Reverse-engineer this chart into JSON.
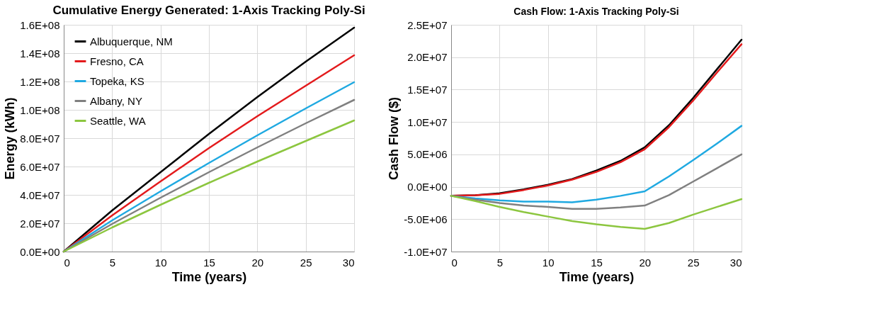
{
  "chart_data": [
    {
      "type": "line",
      "title": "Cumulative Energy Generated: 1-Axis Tracking Poly-Si",
      "xlabel": "Time (years)",
      "ylabel": "Energy (kWh)",
      "x": [
        0,
        5,
        10,
        15,
        20,
        25,
        30
      ],
      "xlim": [
        0,
        30
      ],
      "xticks": [
        0,
        5,
        10,
        15,
        20,
        25,
        30
      ],
      "ylim": [
        0,
        160000000
      ],
      "yticks": [
        {
          "value": 0,
          "label": "0.0E+00"
        },
        {
          "value": 20000000,
          "label": "2.0E+07"
        },
        {
          "value": 40000000,
          "label": "4.0E+07"
        },
        {
          "value": 60000000,
          "label": "6.0E+07"
        },
        {
          "value": 80000000,
          "label": "8.0E+07"
        },
        {
          "value": 100000000,
          "label": "1.0E+08"
        },
        {
          "value": 120000000,
          "label": "1.2E+08"
        },
        {
          "value": 140000000,
          "label": "1.4E+08"
        },
        {
          "value": 160000000,
          "label": "1.6E+08"
        }
      ],
      "grid": true,
      "legend": "top left",
      "marker": "none",
      "line_style": "solid",
      "series": [
        {
          "name": "Albuquerque, NM",
          "color": "#000000",
          "values": [
            0,
            29000000,
            56000000,
            83000000,
            109000000,
            134000000,
            158000000
          ]
        },
        {
          "name": "Fresno, CA",
          "color": "#e31a1c",
          "values": [
            0,
            25500000,
            49500000,
            73000000,
            95500000,
            117000000,
            138500000
          ]
        },
        {
          "name": "Topeka, KS",
          "color": "#1fa9e1",
          "values": [
            0,
            22000000,
            42500000,
            62500000,
            82000000,
            101000000,
            119500000
          ]
        },
        {
          "name": "Albany, NY",
          "color": "#808080",
          "values": [
            0,
            19500000,
            38000000,
            56000000,
            73500000,
            90500000,
            107000000
          ]
        },
        {
          "name": "Seattle, WA",
          "color": "#8cc63f",
          "values": [
            0,
            17000000,
            33000000,
            48500000,
            63500000,
            78000000,
            92500000
          ]
        }
      ]
    },
    {
      "type": "line",
      "title": "Cash Flow: 1-Axis Tracking Poly-Si",
      "xlabel": "Time (years)",
      "ylabel": "Cash Flow ($)",
      "x": [
        0,
        2.5,
        5,
        7.5,
        10,
        12.5,
        15,
        17.5,
        20,
        22.5,
        25,
        27.5,
        30
      ],
      "xlim": [
        0,
        30
      ],
      "xticks": [
        0,
        5,
        10,
        15,
        20,
        25,
        30
      ],
      "ylim": [
        -10000000,
        25000000
      ],
      "yticks": [
        {
          "value": -10000000,
          "label": "-1.0E+07"
        },
        {
          "value": -5000000,
          "label": "-5.0E+06"
        },
        {
          "value": 0,
          "label": "0.0E+00"
        },
        {
          "value": 5000000,
          "label": "5.0E+06"
        },
        {
          "value": 10000000,
          "label": "1.0E+07"
        },
        {
          "value": 15000000,
          "label": "1.5E+07"
        },
        {
          "value": 20000000,
          "label": "2.0E+07"
        },
        {
          "value": 25000000,
          "label": "2.5E+07"
        }
      ],
      "grid": true,
      "legend": "top left",
      "marker": "none",
      "line_style": "solid",
      "series": [
        {
          "name": "Albuquerque, NM",
          "color": "#000000",
          "values": [
            -1400000,
            -1300000,
            -1000000,
            -400000,
            300000,
            1200000,
            2500000,
            4000000,
            6100000,
            9500000,
            13700000,
            18200000,
            22700000
          ]
        },
        {
          "name": "Fresno, CA",
          "color": "#e31a1c",
          "values": [
            -1400000,
            -1300000,
            -1100000,
            -500000,
            200000,
            1100000,
            2300000,
            3800000,
            5800000,
            9200000,
            13300000,
            17700000,
            22000000
          ]
        },
        {
          "name": "Topeka, KS",
          "color": "#1fa9e1",
          "values": [
            -1400000,
            -1800000,
            -2100000,
            -2300000,
            -2300000,
            -2400000,
            -2000000,
            -1400000,
            -700000,
            1600000,
            4100000,
            6700000,
            9400000
          ]
        },
        {
          "name": "Albany, NY",
          "color": "#808080",
          "values": [
            -1400000,
            -2000000,
            -2500000,
            -2900000,
            -3100000,
            -3400000,
            -3400000,
            -3200000,
            -2900000,
            -1300000,
            800000,
            2900000,
            5000000
          ]
        },
        {
          "name": "Seattle, WA",
          "color": "#8cc63f",
          "values": [
            -1400000,
            -2200000,
            -3100000,
            -3900000,
            -4600000,
            -5300000,
            -5800000,
            -6200000,
            -6500000,
            -5600000,
            -4300000,
            -3100000,
            -1900000
          ]
        }
      ]
    }
  ]
}
